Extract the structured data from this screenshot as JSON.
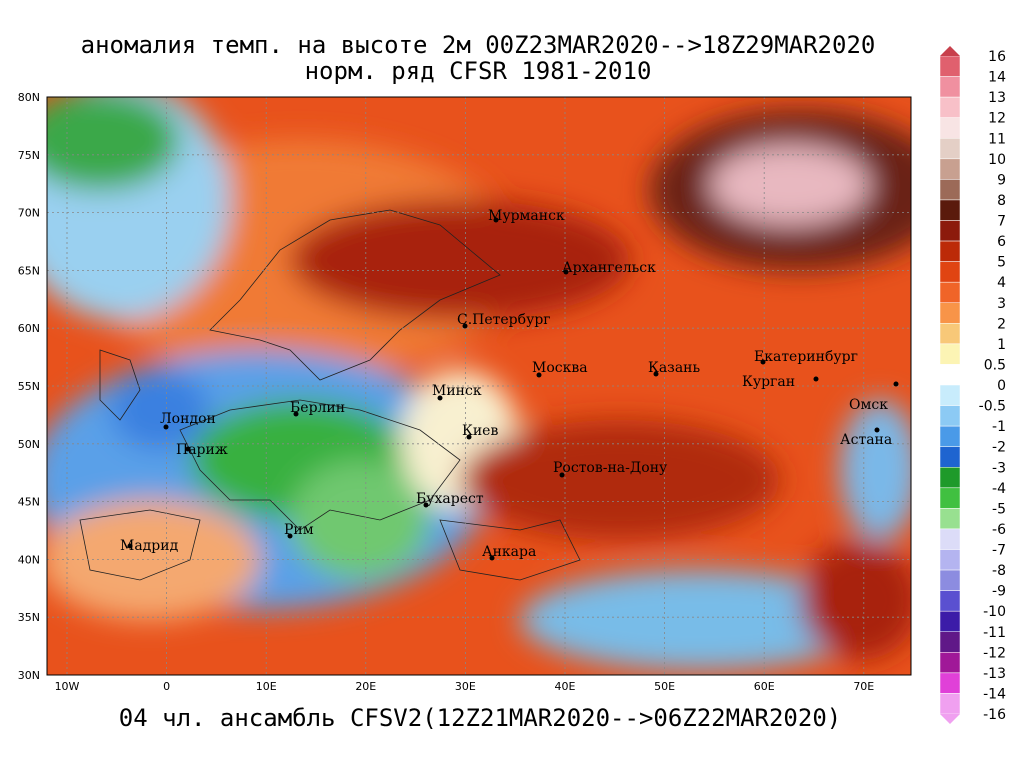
{
  "header": {
    "title_lines": [
      "аномалия темп. на высоте 2м 00Z23MAR2020-->18Z29MAR2020",
      "норм. ряд CFSR 1981-2010"
    ]
  },
  "map": {
    "lat_labels": [
      "80N",
      "75N",
      "70N",
      "65N",
      "60N",
      "55N",
      "50N",
      "45N",
      "40N",
      "35N",
      "30N"
    ],
    "lon_labels": [
      "10W",
      "0",
      "10E",
      "20E",
      "30E",
      "40E",
      "50E",
      "60E",
      "70E"
    ],
    "cities": [
      "Мурманск",
      "Архангельск",
      "С.Петербург",
      "Москва",
      "Казань",
      "Екатеринбург",
      "Курган",
      "Омск",
      "Астана",
      "Минск",
      "Киев",
      "Берлин",
      "Лондон",
      "Париж",
      "Ростов-на-Дону",
      "Бухарест",
      "Рим",
      "Мадрид",
      "Анкара"
    ]
  },
  "colorbar": {
    "labels": [
      "16",
      "14",
      "13",
      "12",
      "11",
      "10",
      "9",
      "8",
      "7",
      "6",
      "5",
      "4",
      "3",
      "2",
      "1",
      "0.5",
      "0",
      "-0.5",
      "-1",
      "-2",
      "-3",
      "-4",
      "-5",
      "-6",
      "-7",
      "-8",
      "-9",
      "-10",
      "-11",
      "-12",
      "-13",
      "-14",
      "-16"
    ],
    "colors": [
      "#c8404c",
      "#e0606e",
      "#f090a0",
      "#f8c0c8",
      "#f8e4e4",
      "#e4cfc6",
      "#c8a090",
      "#9c6a58",
      "#5a1a0c",
      "#8c1a0c",
      "#bc2a08",
      "#e04412",
      "#f06428",
      "#f89448",
      "#f8c878",
      "#fcf4b4",
      "#ffffff",
      "#c8ecfc",
      "#8ccaf4",
      "#4a9ae8",
      "#1e64d0",
      "#1e9a2a",
      "#40c040",
      "#98e090",
      "#dcdcf8",
      "#b4b4f0",
      "#8c8ce0",
      "#5a50d0",
      "#3c1ca8",
      "#601888",
      "#a01898",
      "#e040d8",
      "#f0a0f0"
    ]
  },
  "footer": "04 чл. ансамбль CFSV2(12Z21MAR2020-->06Z22MAR2020)"
}
